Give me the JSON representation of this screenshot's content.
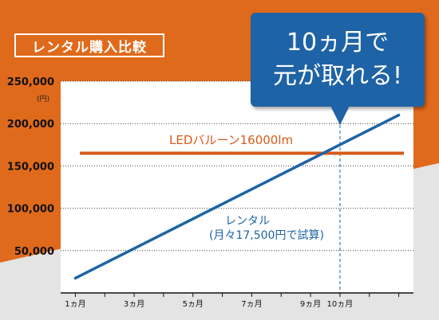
{
  "title": "レンタル購入比較",
  "unit": "(円)",
  "callout": {
    "line1": "10ヵ月で",
    "line2": "元が取れる!"
  },
  "colors": {
    "orange_bg": "#e06a1c",
    "grey_bg": "#e4e4e4",
    "rental_line": "#1e63a6",
    "purchase_line": "#d65a18",
    "callout": "#1e63a6"
  },
  "chart_data": {
    "type": "line",
    "x": [
      1,
      2,
      3,
      4,
      5,
      6,
      7,
      8,
      9,
      10,
      11,
      12
    ],
    "x_ticks": [
      {
        "x": 1,
        "label": "1ヵ月"
      },
      {
        "x": 3,
        "label": "3ヵ月"
      },
      {
        "x": 5,
        "label": "5ヵ月"
      },
      {
        "x": 7,
        "label": "7ヵ月"
      },
      {
        "x": 9,
        "label": "9ヵ月"
      },
      {
        "x": 10,
        "label": "10ヵ月"
      }
    ],
    "xlim": [
      0.5,
      12.5
    ],
    "ylim": [
      0,
      250000
    ],
    "y_ticks": [
      {
        "value": 50000,
        "label": "50,000"
      },
      {
        "value": 100000,
        "label": "100,000"
      },
      {
        "value": 150000,
        "label": "150,000"
      },
      {
        "value": 200000,
        "label": "200,000"
      },
      {
        "value": 250000,
        "label": "250,000"
      }
    ],
    "grid": "horizontal-dotted",
    "series": [
      {
        "name": "レンタル",
        "note": "(月々17,500円で試算)",
        "values": [
          17500,
          35000,
          52500,
          70000,
          87500,
          105000,
          122500,
          140000,
          157500,
          175000,
          192500,
          210000
        ]
      },
      {
        "name": "LEDバルーン16000lm",
        "values": [
          165000,
          165000,
          165000,
          165000,
          165000,
          165000,
          165000,
          165000,
          165000,
          165000,
          165000,
          165000
        ]
      }
    ],
    "marker_line_x": 10
  }
}
